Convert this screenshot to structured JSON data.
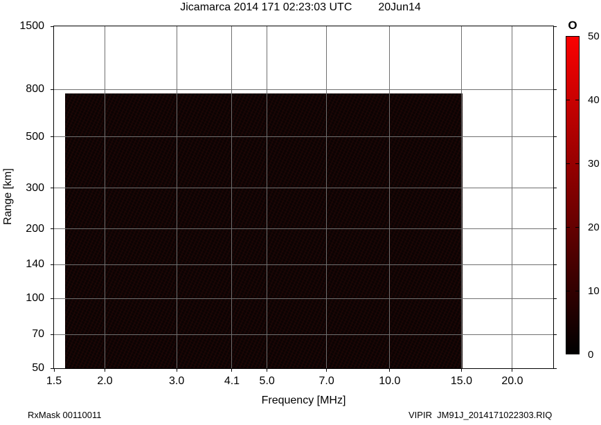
{
  "header": {
    "title_main": "Jicamarca 2014 171 02:23:03 UTC",
    "title_date": "20Jun14"
  },
  "footer": {
    "left_text": "RxMask 00110011",
    "right_text": "VIPIR  JM91J_2014171022303.RIQ"
  },
  "chart_data": {
    "type": "heatmap",
    "title": "Jicamarca 2014 171 02:23:03 UTC   20Jun14",
    "xlabel": "Frequency [MHz]",
    "ylabel": "Range [km]",
    "x_scale": "log",
    "y_scale": "log",
    "xlim": [
      1.5,
      25.2
    ],
    "ylim": [
      50,
      1500
    ],
    "x_ticks": [
      1.5,
      2.0,
      3.0,
      4.1,
      5.0,
      7.0,
      10.0,
      15.0,
      20.0
    ],
    "x_tick_labels": [
      "1.5",
      "2.0",
      "3.0",
      "4.1",
      "5.0",
      "7.0",
      "10.0",
      "15.0",
      "20.0"
    ],
    "y_ticks": [
      50,
      70,
      100,
      140,
      200,
      300,
      500,
      800,
      1500
    ],
    "y_tick_labels": [
      "50",
      "70",
      "100",
      "140",
      "200",
      "300",
      "500",
      "800",
      "1500"
    ],
    "grid": true,
    "grid_color": "#6f6f6f",
    "echo_region": {
      "x_min_mhz": 1.6,
      "x_max_mhz": 15.1,
      "y_min_km": 50,
      "y_max_km": 770,
      "fill_color": "#0b0303"
    },
    "colorbar": {
      "label": "O",
      "min": 0,
      "max": 50,
      "ticks": [
        0,
        10,
        20,
        30,
        40,
        50
      ],
      "tick_labels": [
        "0",
        "10",
        "20",
        "30",
        "40",
        "50"
      ],
      "top_color": "#fb0101",
      "bottom_color": "#000000"
    }
  }
}
